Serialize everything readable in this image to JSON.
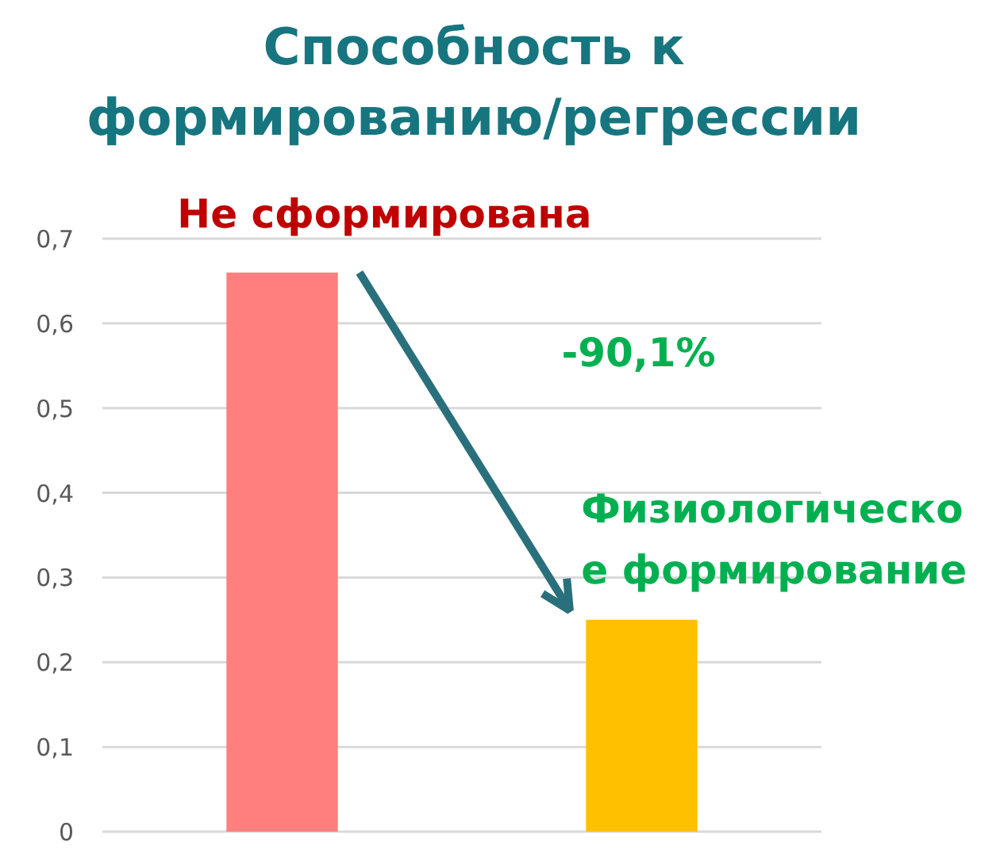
{
  "chart_data": {
    "type": "bar",
    "title": "Способность к формированию/регрессии",
    "categories": [
      null,
      null
    ],
    "values": [
      0.66,
      0.25
    ],
    "colors": [
      "#ff7f7f",
      "#ffc000"
    ],
    "ylim": [
      0,
      0.7
    ],
    "yticks": [
      0,
      {
        "value": 0.1,
        "label": "0,1"
      },
      {
        "value": 0.2,
        "label": "0,2"
      },
      {
        "value": 0.3,
        "label": "0,3"
      },
      {
        "value": 0.4,
        "label": "0,4"
      },
      {
        "value": 0.5,
        "label": "0,5"
      },
      {
        "value": 0.6,
        "label": "0,6"
      },
      {
        "value": 0.7,
        "label": "0,7"
      }
    ],
    "grid": "y",
    "annotations": [
      "Не сформирована",
      "Физиологическо е формирование",
      "-90,1%"
    ]
  }
}
